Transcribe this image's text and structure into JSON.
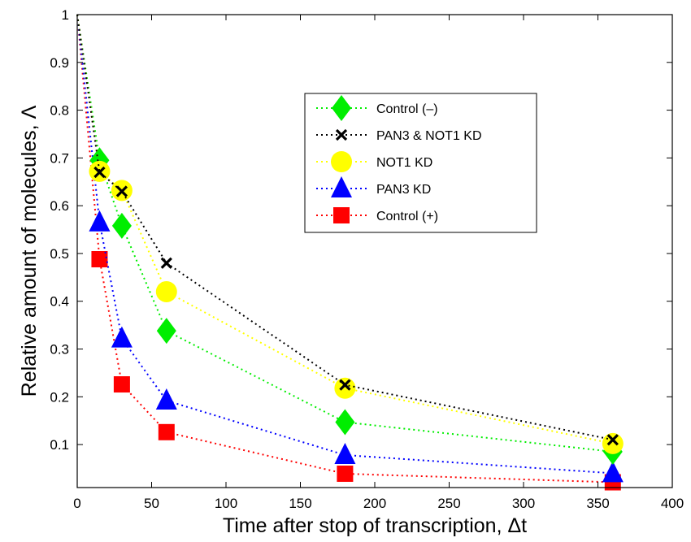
{
  "chart_data": {
    "type": "line",
    "title": "",
    "xlabel": "Time after stop of transcription, Δt",
    "ylabel": "Relative amount of molecules, Λ",
    "xlim": [
      0,
      400
    ],
    "ylim": [
      0.01,
      1
    ],
    "xticks": [
      "0",
      "50",
      "100",
      "150",
      "200",
      "250",
      "300",
      "350",
      "400"
    ],
    "yticks": [
      "0.1",
      "0.2",
      "0.3",
      "0.4",
      "0.5",
      "0.6",
      "0.7",
      "0.8",
      "0.9",
      "1"
    ],
    "grid": false,
    "legend_position": "upper-right",
    "line_style": "dotted",
    "series": [
      {
        "name": "Control (–)",
        "color": "#00ee00",
        "marker": "diamond",
        "x": [
          0,
          15,
          30,
          60,
          180,
          360
        ],
        "y": [
          1,
          0.695,
          0.558,
          0.338,
          0.147,
          0.085
        ]
      },
      {
        "name": "PAN3 & NOT1 KD",
        "color": "#000000",
        "marker": "x",
        "x": [
          0,
          15,
          30,
          60,
          180,
          360
        ],
        "y": [
          1,
          0.67,
          0.63,
          0.48,
          0.225,
          0.11
        ]
      },
      {
        "name": "NOT1 KD",
        "color": "#ffff00",
        "marker": "circle",
        "x": [
          0,
          15,
          30,
          60,
          180,
          360
        ],
        "y": [
          1,
          0.672,
          0.632,
          0.42,
          0.218,
          0.102
        ]
      },
      {
        "name": "PAN3 KD",
        "color": "#0000ff",
        "marker": "triangle",
        "x": [
          0,
          15,
          30,
          60,
          180,
          360
        ],
        "y": [
          1,
          0.565,
          0.322,
          0.192,
          0.078,
          0.04
        ]
      },
      {
        "name": "Control (+)",
        "color": "#ff0000",
        "marker": "square",
        "x": [
          0,
          15,
          30,
          60,
          180,
          360
        ],
        "y": [
          1,
          0.488,
          0.226,
          0.126,
          0.039,
          0.021
        ]
      }
    ]
  }
}
